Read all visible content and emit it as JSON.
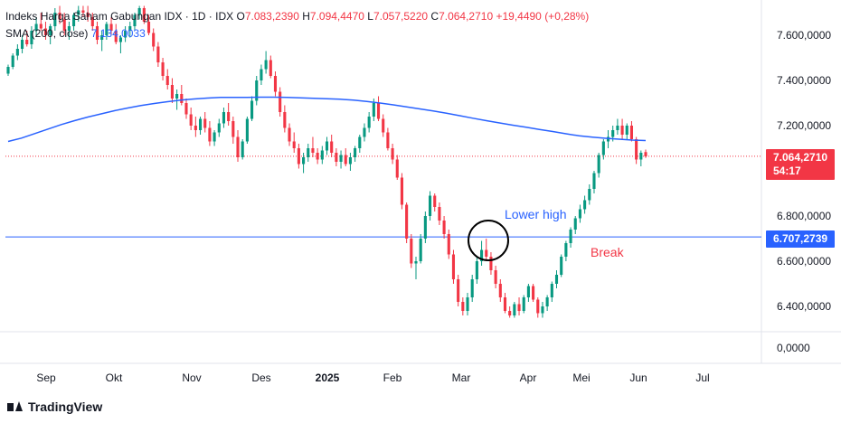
{
  "legend": {
    "symbol": "Indeks Harga Saham Gabungan IDX · 1D · IDX",
    "o_label": "O",
    "o_val": "7.083,2390",
    "h_label": "H",
    "h_val": "7.094,4470",
    "l_label": "L",
    "l_val": "7.057,5220",
    "c_label": "C",
    "c_val": "7.064,2710",
    "change": "+19,4490 (+0,28%)",
    "sma_label": "SMA (200, close)",
    "sma_val": "7.134,0033"
  },
  "price_tag": {
    "value": "7.064,2710",
    "countdown": "54:17",
    "color": "#f23645"
  },
  "level_tag": {
    "value": "6.707,2739",
    "color": "#2962ff"
  },
  "annotations": {
    "lower_high": "Lower high",
    "break": "Break"
  },
  "brand": "TradingView",
  "colors": {
    "up": "#089981",
    "down": "#f23645",
    "sma": "#2962ff",
    "level": "#2962ff"
  },
  "chart_data": {
    "type": "candlestick",
    "title": "Indeks Harga Saham Gabungan IDX · 1D · IDX",
    "y_ticks": [
      "7.600,0000",
      "7.400,0000",
      "7.200,0000",
      "6.800,0000",
      "6.600,0000",
      "6.400,0000"
    ],
    "y_ticks_values": [
      7600,
      7400,
      7200,
      6800,
      6600,
      6400
    ],
    "bottom_tick": "0,0000",
    "ylim": [
      6345,
      7730
    ],
    "x_ticks": [
      "Sep",
      "Okt",
      "Nov",
      "Des",
      "2025",
      "Feb",
      "Mar",
      "Apr",
      "Mei",
      "Jun",
      "Jul"
    ],
    "bold_x_ticks": [
      "2025"
    ],
    "horizontal_level": 6707.2739,
    "last_close": 7064.271,
    "sma_200": [
      7130,
      7145,
      7165,
      7185,
      7205,
      7222,
      7238,
      7252,
      7266,
      7278,
      7289,
      7298,
      7306,
      7313,
      7318,
      7322,
      7325,
      7325,
      7325,
      7326,
      7326,
      7325,
      7323,
      7321,
      7319,
      7317,
      7313,
      7307,
      7300,
      7292,
      7283,
      7274,
      7265,
      7255,
      7244,
      7233,
      7222,
      7212,
      7202,
      7193,
      7183,
      7174,
      7164,
      7155,
      7149,
      7144,
      7140,
      7136,
      7134
    ],
    "candles_note": "approximate daily OHLC read from chart",
    "candles": [
      [
        7430,
        7470,
        7420,
        7460
      ],
      [
        7460,
        7520,
        7450,
        7510
      ],
      [
        7510,
        7560,
        7490,
        7540
      ],
      [
        7540,
        7600,
        7520,
        7580
      ],
      [
        7580,
        7620,
        7550,
        7560
      ],
      [
        7560,
        7640,
        7540,
        7620
      ],
      [
        7620,
        7680,
        7600,
        7650
      ],
      [
        7650,
        7700,
        7620,
        7630
      ],
      [
        7630,
        7660,
        7580,
        7600
      ],
      [
        7600,
        7650,
        7560,
        7640
      ],
      [
        7640,
        7720,
        7620,
        7700
      ],
      [
        7700,
        7730,
        7650,
        7670
      ],
      [
        7670,
        7700,
        7600,
        7620
      ],
      [
        7620,
        7660,
        7580,
        7640
      ],
      [
        7640,
        7700,
        7620,
        7690
      ],
      [
        7690,
        7730,
        7660,
        7710
      ],
      [
        7710,
        7730,
        7680,
        7700
      ],
      [
        7700,
        7730,
        7660,
        7680
      ],
      [
        7680,
        7700,
        7620,
        7640
      ],
      [
        7640,
        7660,
        7560,
        7580
      ],
      [
        7580,
        7620,
        7530,
        7600
      ],
      [
        7600,
        7660,
        7580,
        7650
      ],
      [
        7650,
        7680,
        7600,
        7620
      ],
      [
        7620,
        7650,
        7560,
        7570
      ],
      [
        7570,
        7600,
        7520,
        7590
      ],
      [
        7590,
        7640,
        7570,
        7620
      ],
      [
        7620,
        7660,
        7590,
        7640
      ],
      [
        7640,
        7700,
        7620,
        7690
      ],
      [
        7690,
        7730,
        7670,
        7720
      ],
      [
        7720,
        7730,
        7650,
        7660
      ],
      [
        7660,
        7690,
        7600,
        7610
      ],
      [
        7610,
        7630,
        7530,
        7550
      ],
      [
        7550,
        7570,
        7460,
        7480
      ],
      [
        7480,
        7500,
        7400,
        7420
      ],
      [
        7420,
        7450,
        7360,
        7380
      ],
      [
        7380,
        7410,
        7300,
        7320
      ],
      [
        7320,
        7360,
        7270,
        7340
      ],
      [
        7340,
        7380,
        7290,
        7300
      ],
      [
        7300,
        7320,
        7230,
        7250
      ],
      [
        7250,
        7280,
        7180,
        7200
      ],
      [
        7200,
        7240,
        7150,
        7180
      ],
      [
        7180,
        7240,
        7160,
        7230
      ],
      [
        7230,
        7260,
        7170,
        7190
      ],
      [
        7190,
        7220,
        7110,
        7130
      ],
      [
        7130,
        7180,
        7110,
        7170
      ],
      [
        7170,
        7230,
        7150,
        7210
      ],
      [
        7210,
        7280,
        7190,
        7260
      ],
      [
        7260,
        7300,
        7200,
        7220
      ],
      [
        7220,
        7240,
        7120,
        7150
      ],
      [
        7150,
        7180,
        7040,
        7060
      ],
      [
        7060,
        7140,
        7050,
        7130
      ],
      [
        7130,
        7240,
        7120,
        7230
      ],
      [
        7230,
        7330,
        7220,
        7310
      ],
      [
        7310,
        7420,
        7290,
        7400
      ],
      [
        7400,
        7470,
        7380,
        7450
      ],
      [
        7450,
        7530,
        7430,
        7490
      ],
      [
        7490,
        7510,
        7410,
        7420
      ],
      [
        7420,
        7440,
        7330,
        7350
      ],
      [
        7350,
        7370,
        7240,
        7260
      ],
      [
        7260,
        7290,
        7170,
        7190
      ],
      [
        7190,
        7210,
        7110,
        7130
      ],
      [
        7130,
        7170,
        7080,
        7100
      ],
      [
        7100,
        7120,
        7010,
        7030
      ],
      [
        7030,
        7080,
        6990,
        7060
      ],
      [
        7060,
        7120,
        7040,
        7100
      ],
      [
        7100,
        7150,
        7060,
        7080
      ],
      [
        7080,
        7100,
        7030,
        7050
      ],
      [
        7050,
        7110,
        7030,
        7090
      ],
      [
        7090,
        7150,
        7070,
        7130
      ],
      [
        7130,
        7160,
        7060,
        7080
      ],
      [
        7080,
        7100,
        7020,
        7040
      ],
      [
        7040,
        7090,
        7010,
        7070
      ],
      [
        7070,
        7100,
        7020,
        7030
      ],
      [
        7030,
        7080,
        7000,
        7060
      ],
      [
        7060,
        7110,
        7040,
        7100
      ],
      [
        7100,
        7160,
        7080,
        7150
      ],
      [
        7150,
        7210,
        7130,
        7190
      ],
      [
        7190,
        7260,
        7170,
        7240
      ],
      [
        7240,
        7320,
        7220,
        7300
      ],
      [
        7300,
        7330,
        7220,
        7230
      ],
      [
        7230,
        7250,
        7150,
        7170
      ],
      [
        7170,
        7190,
        7090,
        7100
      ],
      [
        7100,
        7120,
        7030,
        7050
      ],
      [
        7050,
        7070,
        6960,
        6970
      ],
      [
        6970,
        6990,
        6830,
        6850
      ],
      [
        6850,
        6860,
        6680,
        6700
      ],
      [
        6700,
        6720,
        6570,
        6590
      ],
      [
        6590,
        6620,
        6520,
        6600
      ],
      [
        6600,
        6720,
        6590,
        6700
      ],
      [
        6700,
        6820,
        6680,
        6800
      ],
      [
        6800,
        6910,
        6780,
        6890
      ],
      [
        6890,
        6900,
        6820,
        6840
      ],
      [
        6840,
        6860,
        6760,
        6780
      ],
      [
        6780,
        6800,
        6700,
        6720
      ],
      [
        6720,
        6740,
        6610,
        6630
      ],
      [
        6630,
        6650,
        6500,
        6520
      ],
      [
        6520,
        6540,
        6400,
        6420
      ],
      [
        6420,
        6440,
        6360,
        6380
      ],
      [
        6380,
        6460,
        6360,
        6440
      ],
      [
        6440,
        6540,
        6420,
        6520
      ],
      [
        6520,
        6620,
        6500,
        6600
      ],
      [
        6600,
        6690,
        6580,
        6650
      ],
      [
        6650,
        6700,
        6600,
        6620
      ],
      [
        6620,
        6640,
        6540,
        6560
      ],
      [
        6560,
        6580,
        6480,
        6500
      ],
      [
        6500,
        6520,
        6420,
        6440
      ],
      [
        6440,
        6460,
        6370,
        6380
      ],
      [
        6380,
        6400,
        6350,
        6360
      ],
      [
        6360,
        6420,
        6350,
        6410
      ],
      [
        6410,
        6440,
        6360,
        6380
      ],
      [
        6380,
        6450,
        6370,
        6440
      ],
      [
        6440,
        6500,
        6420,
        6490
      ],
      [
        6490,
        6500,
        6420,
        6430
      ],
      [
        6430,
        6440,
        6350,
        6370
      ],
      [
        6370,
        6420,
        6350,
        6400
      ],
      [
        6400,
        6450,
        6380,
        6440
      ],
      [
        6440,
        6510,
        6420,
        6500
      ],
      [
        6500,
        6560,
        6480,
        6540
      ],
      [
        6540,
        6630,
        6530,
        6620
      ],
      [
        6620,
        6690,
        6600,
        6680
      ],
      [
        6680,
        6750,
        6660,
        6740
      ],
      [
        6740,
        6800,
        6720,
        6790
      ],
      [
        6790,
        6850,
        6770,
        6830
      ],
      [
        6830,
        6890,
        6810,
        6870
      ],
      [
        6870,
        6940,
        6850,
        6920
      ],
      [
        6920,
        7000,
        6900,
        6990
      ],
      [
        6990,
        7080,
        6970,
        7070
      ],
      [
        7070,
        7140,
        7050,
        7130
      ],
      [
        7130,
        7180,
        7100,
        7150
      ],
      [
        7150,
        7200,
        7130,
        7180
      ],
      [
        7180,
        7230,
        7160,
        7200
      ],
      [
        7200,
        7230,
        7140,
        7160
      ],
      [
        7160,
        7210,
        7140,
        7200
      ],
      [
        7200,
        7220,
        7130,
        7140
      ],
      [
        7140,
        7150,
        7030,
        7050
      ],
      [
        7050,
        7090,
        7020,
        7080
      ],
      [
        7083,
        7094,
        7057,
        7064
      ]
    ]
  }
}
